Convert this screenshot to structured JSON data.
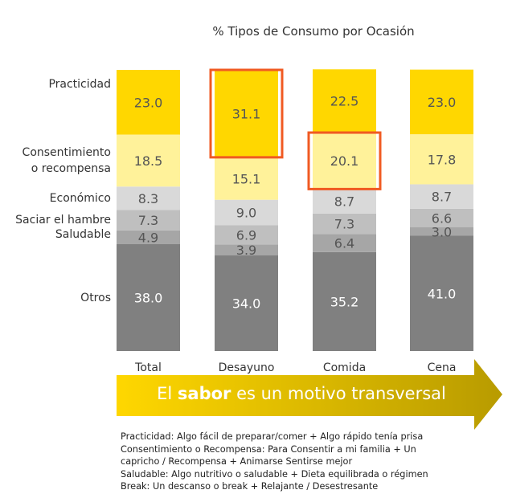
{
  "chart_data": {
    "type": "bar",
    "stacked": true,
    "title": "% Tipos de Consumo por Ocasión",
    "categories": [
      "Total",
      "Desayuno",
      "Comida",
      "Cena"
    ],
    "series": [
      {
        "name": "Otros",
        "color": "#808080",
        "label_color": "#ffffff",
        "values": [
          38.0,
          34.0,
          35.2,
          41.0
        ],
        "labels": [
          "38.0",
          "34.0",
          "35.2",
          "41.0"
        ]
      },
      {
        "name": "Saludable",
        "color": "#A6A6A6",
        "label_color": "#555555",
        "values": [
          4.9,
          3.9,
          6.4,
          3.0
        ],
        "labels": [
          "4.9",
          "3.9",
          "6.4",
          "3.0"
        ]
      },
      {
        "name": "Saciar el hambre",
        "color": "#BFBFBF",
        "label_color": "#555555",
        "values": [
          7.3,
          6.9,
          7.3,
          6.6
        ],
        "labels": [
          "7.3",
          "6.9",
          "7.3",
          "6.6"
        ]
      },
      {
        "name": "Económico",
        "color": "#D9D9D9",
        "label_color": "#555555",
        "values": [
          8.3,
          9.0,
          8.7,
          8.7
        ],
        "labels": [
          "8.3",
          "9.0",
          "8.7",
          "8.7"
        ]
      },
      {
        "name": "Consentimiento o recompensa",
        "name_lines": [
          "Consentimiento",
          "o recompensa"
        ],
        "color": "#FFF29A",
        "label_color": "#555555",
        "values": [
          18.5,
          15.1,
          20.1,
          17.8
        ],
        "labels": [
          "18.5",
          "15.1",
          "20.1",
          "17.8"
        ]
      },
      {
        "name": "Practicidad",
        "color": "#FFD700",
        "label_color": "#555555",
        "values": [
          23.0,
          31.1,
          22.5,
          23.0
        ],
        "labels": [
          "23.0",
          "31.1",
          "22.5",
          "23.0"
        ]
      }
    ],
    "highlights": [
      {
        "category": "Desayuno",
        "series": "Practicidad"
      },
      {
        "category": "Comida",
        "series": "Consentimiento o recompensa"
      }
    ],
    "highlight_color": "#F05A22",
    "ylim": [
      0,
      100
    ],
    "legend": "left"
  },
  "banner": {
    "pre": "El ",
    "bold": "sabor",
    "post": " es un motivo transversal",
    "color_start": "#FFD700",
    "color_end": "#B89B00"
  },
  "footnotes": [
    "Practicidad: Algo fácil de preparar/comer + Algo rápido tenía prisa",
    "Consentimiento  o Recompensa: Para Consentir a mi familia + Un",
    "capricho / Recompensa + Animarse Sentirse mejor",
    "Saludable: Algo nutritivo o saludable + Dieta equilibrada o régimen",
    "Break: Un descanso o break + Relajante / Desestresante"
  ]
}
